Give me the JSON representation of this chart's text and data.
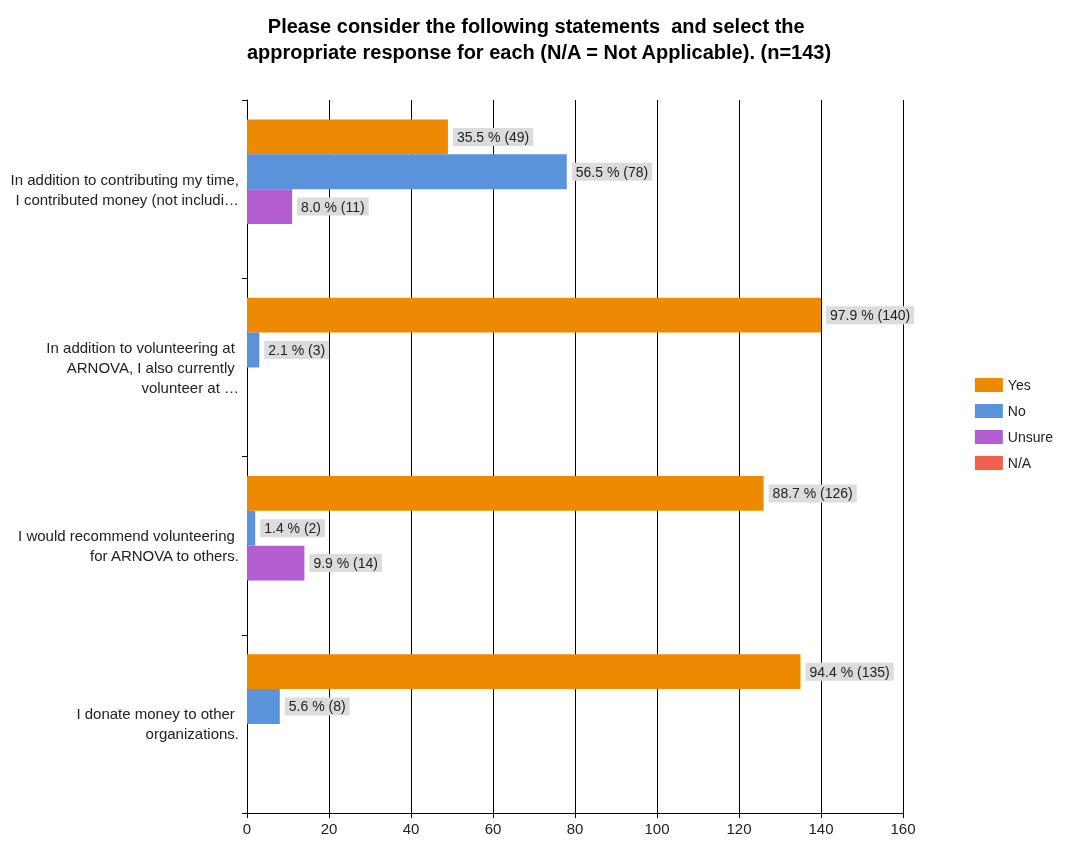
{
  "chart_data": {
    "type": "bar",
    "orientation": "horizontal",
    "title": "Please consider the following statements  and select the appropriate response for each (N/A = Not Applicable). (n=143)",
    "categories": [
      "In addition to contributing my time, I contributed money (not includi…",
      "In addition to volunteering at ARNOVA, I also currently volunteer at …",
      "I would recommend volunteering for ARNOVA to others.",
      "I donate money to other organizations."
    ],
    "series": [
      {
        "name": "Yes",
        "color": "#ee8a00",
        "values": [
          49,
          140,
          126,
          135
        ],
        "value_labels": [
          "35.5 % (49)",
          "97.9 % (140)",
          "88.7 % (126)",
          "94.4 % (135)"
        ]
      },
      {
        "name": "No",
        "color": "#5a93dc",
        "values": [
          78,
          3,
          2,
          8
        ],
        "value_labels": [
          "56.5 % (78)",
          "2.1 % (3)",
          "1.4 % (2)",
          "5.6 % (8)"
        ]
      },
      {
        "name": "Unsure",
        "color": "#b35ed0",
        "values": [
          11,
          null,
          14,
          null
        ],
        "value_labels": [
          "8.0 % (11)",
          null,
          "9.9 % (14)",
          null
        ]
      },
      {
        "name": "N/A",
        "color": "#f0604a",
        "values": [
          null,
          null,
          null,
          null
        ]
      }
    ],
    "xlim": [
      0,
      160
    ],
    "xticks": [
      0,
      20,
      40,
      60,
      80,
      100,
      120,
      140,
      160
    ],
    "grid": "x",
    "legend": "right"
  }
}
